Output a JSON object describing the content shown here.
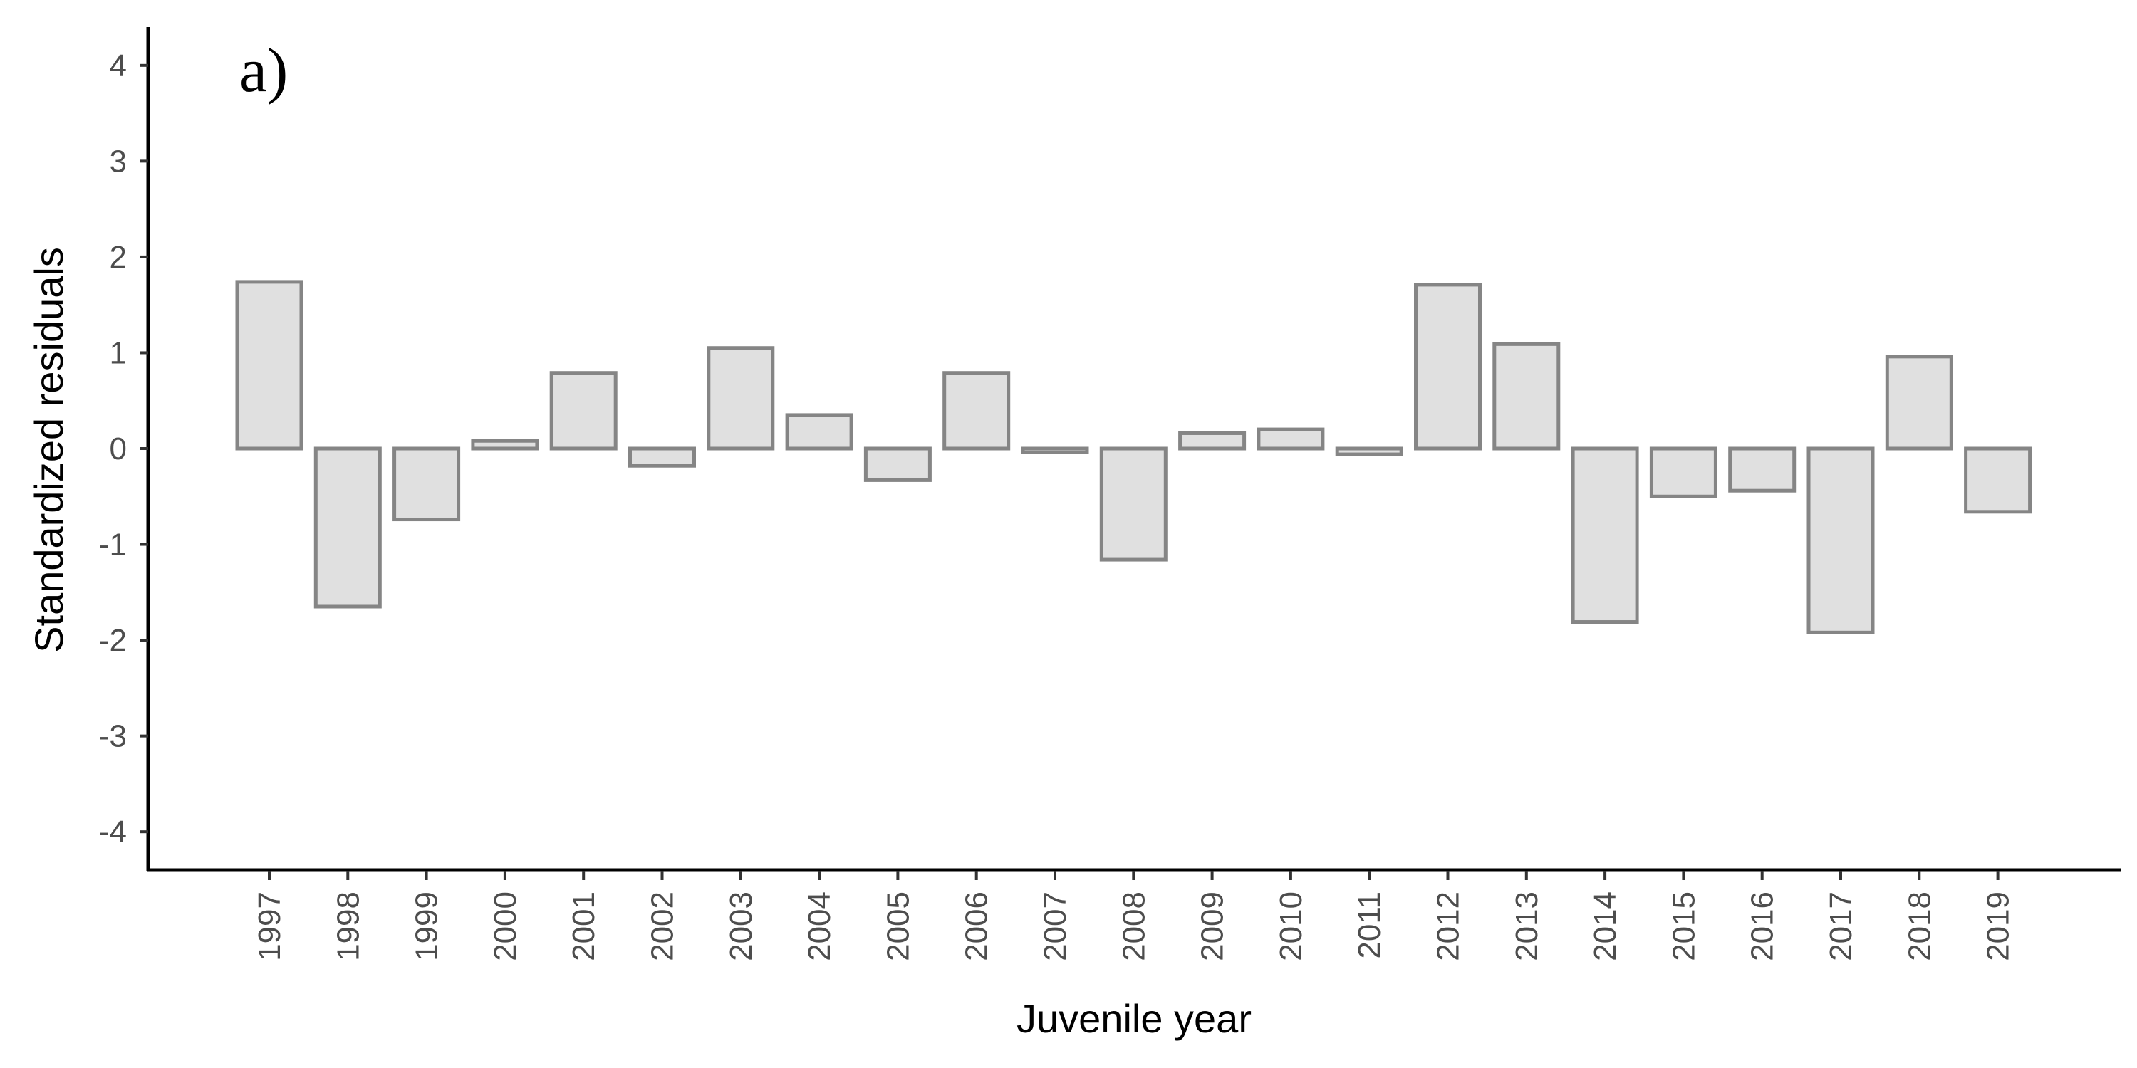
{
  "chart_data": {
    "type": "bar",
    "panel_label": "a)",
    "xlabel": "Juvenile year",
    "ylabel": "Standardized residuals",
    "ylim": [
      -4.4,
      4.4
    ],
    "yticks": [
      -4,
      -3,
      -2,
      -1,
      0,
      1,
      2,
      3,
      4
    ],
    "grid": false,
    "categories": [
      "1997",
      "1998",
      "1999",
      "2000",
      "2001",
      "2002",
      "2003",
      "2004",
      "2005",
      "2006",
      "2007",
      "2008",
      "2009",
      "2010",
      "2011",
      "2012",
      "2013",
      "2014",
      "2015",
      "2016",
      "2017",
      "2018",
      "2019"
    ],
    "values": [
      1.74,
      -1.65,
      -0.74,
      0.08,
      0.79,
      -0.18,
      1.05,
      0.35,
      -0.33,
      0.79,
      -0.04,
      -1.16,
      0.16,
      0.2,
      -0.06,
      1.71,
      1.09,
      -1.81,
      -0.5,
      -0.44,
      -1.92,
      0.96,
      -0.66
    ],
    "colors": {
      "bar_fill": "#e0e0e0",
      "bar_stroke": "#858585",
      "axis": "#000000",
      "tick_text": "#4d4d4d"
    }
  }
}
